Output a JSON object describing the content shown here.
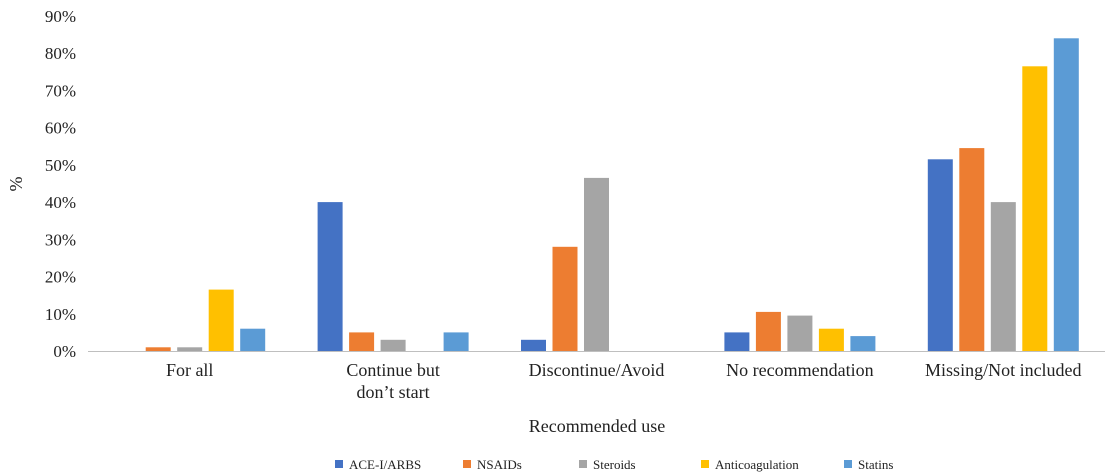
{
  "chart_data": {
    "type": "bar",
    "categories": [
      [
        "For all"
      ],
      [
        "Continue but",
        "don’t start"
      ],
      [
        "Discontinue/Avoid"
      ],
      [
        "No recommendation"
      ],
      [
        "Missing/Not included"
      ]
    ],
    "series": [
      {
        "name": "ACE-I/ARBS",
        "color": "#4472C4",
        "values": [
          0,
          40,
          3,
          5,
          51.5
        ]
      },
      {
        "name": "NSAIDs",
        "color": "#ED7D31",
        "values": [
          1,
          5,
          28,
          10.5,
          54.5
        ]
      },
      {
        "name": "Steroids",
        "color": "#A5A5A5",
        "values": [
          1,
          3,
          46.5,
          9.5,
          40
        ]
      },
      {
        "name": "Anticoagulation",
        "color": "#FFC000",
        "values": [
          16.5,
          0,
          0,
          6,
          76.5
        ]
      },
      {
        "name": "Statins",
        "color": "#5B9BD5",
        "values": [
          6,
          5,
          0,
          4,
          84
        ]
      }
    ],
    "ylim": [
      0,
      90
    ],
    "yticks": [
      0,
      10,
      20,
      30,
      40,
      50,
      60,
      70,
      80,
      90
    ],
    "ytick_suffix": "%",
    "xlabel": "Recommended use",
    "ylabel": "%",
    "legend_position": "bottom",
    "grid": false
  }
}
